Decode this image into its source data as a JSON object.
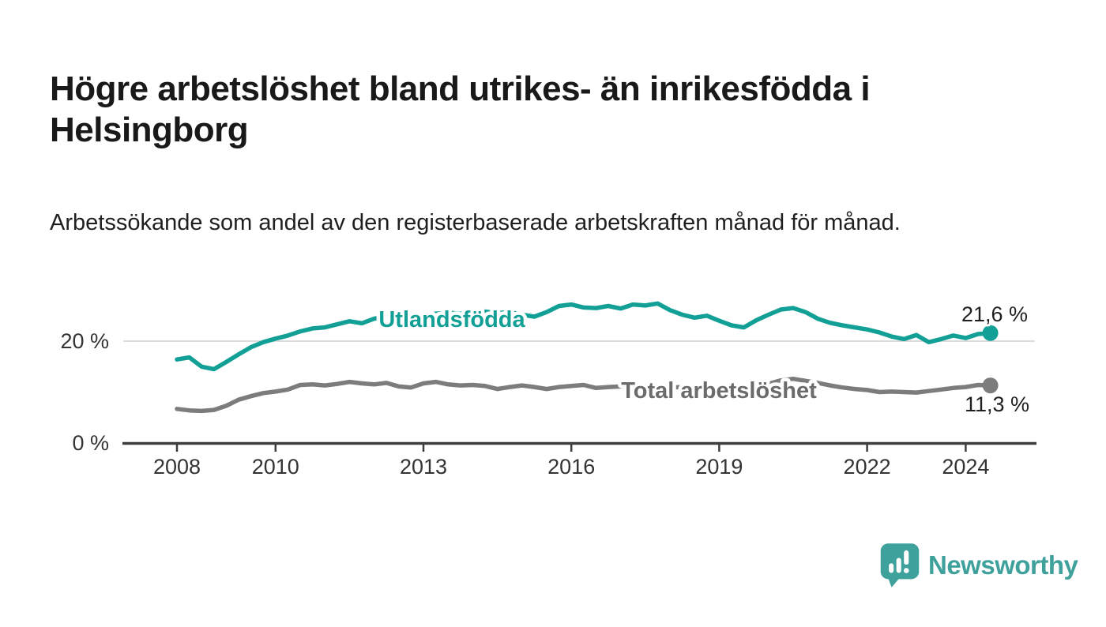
{
  "header": {
    "title": "Högre arbetslöshet bland utrikes- än inrikesfödda i Helsingborg",
    "subtitle": "Arbetssökande som andel av den registerbaserade arbetskraften månad för månad."
  },
  "chart_data": {
    "type": "line",
    "unit": "%",
    "x_axis": "year (monthly data)",
    "x_range_shown": [
      2007,
      2025.4
    ],
    "ylim": [
      0,
      31
    ],
    "grid_line_at": 20,
    "grid_color": "#dcdcdc",
    "axis_color": "#3d3d3d",
    "x_ticks": [
      2008,
      2010,
      2013,
      2016,
      2019,
      2022,
      2024
    ],
    "x_tick_labels": [
      "2008",
      "2010",
      "2013",
      "2016",
      "2019",
      "2022",
      "2024"
    ],
    "y_ticks": [
      {
        "value": 0,
        "label": "0 %"
      },
      {
        "value": 20,
        "label": "20 %"
      }
    ],
    "series": [
      {
        "name": "Utlandsfödda",
        "color": "#12a096",
        "label_color": "#12a096",
        "end_label": "21,6 %",
        "end_value": 21.6,
        "x_start": 2008.0,
        "x_step": 0.25,
        "values": [
          16.4,
          16.8,
          15.0,
          14.5,
          15.9,
          17.4,
          18.8,
          19.8,
          20.5,
          21.1,
          21.9,
          22.5,
          22.7,
          23.3,
          23.9,
          23.5,
          24.4,
          24.9,
          25.1,
          25.3,
          25.1,
          25.4,
          25.6,
          25.4,
          25.6,
          25.8,
          25.5,
          25.7,
          25.2,
          24.8,
          25.7,
          26.9,
          27.2,
          26.6,
          26.5,
          26.9,
          26.4,
          27.2,
          27.0,
          27.4,
          26.1,
          25.2,
          24.6,
          25.0,
          24.0,
          23.1,
          22.7,
          24.1,
          25.2,
          26.2,
          26.5,
          25.7,
          24.4,
          23.6,
          23.1,
          22.7,
          22.3,
          21.7,
          20.9,
          20.4,
          21.2,
          19.8,
          20.4,
          21.1,
          20.6,
          21.4,
          21.6
        ]
      },
      {
        "name": "Total arbetslöshet",
        "color": "#7c7c7c",
        "label_color": "#6b6b6b",
        "end_label": "11,3 %",
        "end_value": 11.3,
        "x_start": 2008.0,
        "x_step": 0.25,
        "values": [
          6.7,
          6.4,
          6.3,
          6.5,
          7.3,
          8.5,
          9.2,
          9.8,
          10.1,
          10.5,
          11.4,
          11.5,
          11.3,
          11.6,
          12.0,
          11.7,
          11.5,
          11.8,
          11.1,
          10.9,
          11.7,
          12.0,
          11.5,
          11.3,
          11.4,
          11.2,
          10.6,
          11.0,
          11.3,
          11.0,
          10.6,
          11.0,
          11.2,
          11.4,
          10.8,
          11.0,
          11.1,
          11.2,
          11.0,
          11.1,
          10.9,
          11.0,
          10.8,
          10.9,
          10.8,
          11.0,
          11.1,
          11.3,
          11.6,
          12.3,
          12.6,
          12.2,
          11.8,
          11.3,
          10.9,
          10.6,
          10.4,
          10.0,
          10.1,
          10.0,
          9.9,
          10.2,
          10.5,
          10.8,
          11.0,
          11.4,
          11.3
        ]
      }
    ]
  },
  "footer": {
    "brand": "Newsworthy",
    "brand_color": "#3fa19b",
    "logo_icon": "speech-bubble-bar-chart-icon"
  }
}
